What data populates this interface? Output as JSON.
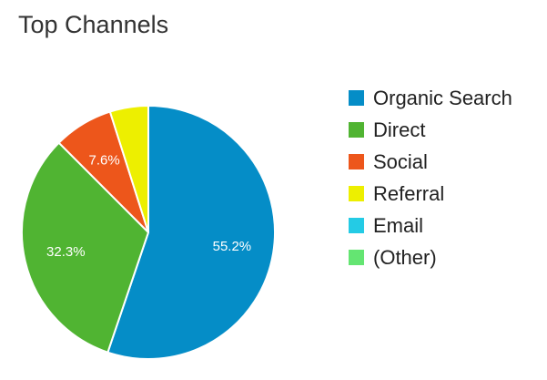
{
  "chart_data": {
    "type": "pie",
    "title": "Top Channels",
    "legend_position": "right",
    "slices": [
      {
        "label": "Organic Search",
        "value": 55.2,
        "display": "55.2%",
        "color": "#058DC7"
      },
      {
        "label": "Direct",
        "value": 32.3,
        "display": "32.3%",
        "color": "#50B432"
      },
      {
        "label": "Social",
        "value": 7.6,
        "display": "7.6%",
        "color": "#ED561B"
      },
      {
        "label": "Referral",
        "value": 4.9,
        "display": "",
        "color": "#EDEF00"
      },
      {
        "label": "Email",
        "value": 0,
        "display": "",
        "color": "#24CBE5"
      },
      {
        "label": "(Other)",
        "value": 0,
        "display": "",
        "color": "#64E572"
      }
    ]
  }
}
